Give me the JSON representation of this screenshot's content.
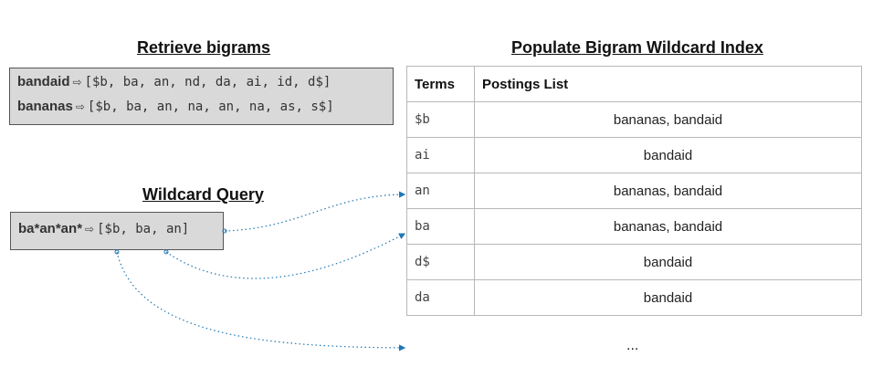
{
  "retrieve": {
    "heading": "Retrieve bigrams",
    "rows": [
      {
        "term": "bandaid",
        "bigrams": "[$b, ba, an, nd, da, ai, id, d$]"
      },
      {
        "term": "bananas",
        "bigrams": "[$b, ba, an, na, an, na, as, s$]"
      }
    ]
  },
  "wildcard": {
    "heading": "Wildcard Query",
    "query": "ba*an*an*",
    "bigrams": "[$b, ba, an]"
  },
  "index": {
    "heading": "Populate Bigram Wildcard Index",
    "columns": [
      "Terms",
      "Postings List"
    ],
    "rows": [
      {
        "term": "$b",
        "postings": "bananas, bandaid"
      },
      {
        "term": "ai",
        "postings": "bandaid"
      },
      {
        "term": "an",
        "postings": "bananas, bandaid"
      },
      {
        "term": "ba",
        "postings": "bananas, bandaid"
      },
      {
        "term": "d$",
        "postings": "bandaid"
      },
      {
        "term": "da",
        "postings": "bandaid"
      }
    ],
    "more": "..."
  },
  "colors": {
    "box_fill": "#d9d9d9",
    "box_border": "#555555",
    "connector": "#1f77b4",
    "table_border": "#b8b8b8"
  },
  "icons": [
    "right-arrow-icon"
  ]
}
